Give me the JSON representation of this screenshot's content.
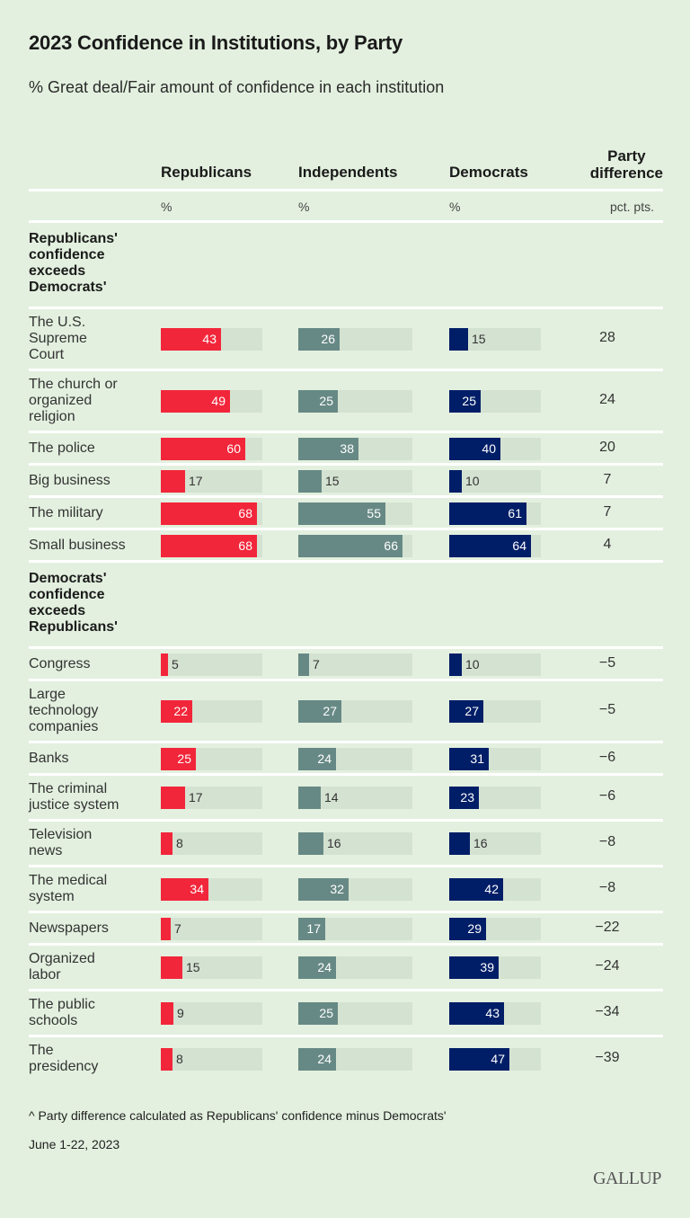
{
  "title": "2023 Confidence in Institutions, by Party",
  "subtitle": "% Great deal/Fair amount of confidence in each institution",
  "headers": {
    "rep": "Republicans",
    "ind": "Independents",
    "dem": "Democrats",
    "diff_line1": "Party",
    "diff_line2": "difference"
  },
  "units": {
    "rep": "%",
    "ind": "%",
    "dem": "%",
    "diff": "pct. pts."
  },
  "colors": {
    "rep": "#f2263a",
    "ind": "#678985",
    "dem": "#001e67",
    "track": "#d4e2d1",
    "background": "#e3f0df"
  },
  "chart_data": {
    "type": "bar",
    "xlim": [
      0,
      72
    ],
    "series_names": [
      "Republicans",
      "Independents",
      "Democrats",
      "Party difference"
    ],
    "sections": [
      {
        "label": "Republicans' confidence exceeds Democrats'",
        "rows": [
          {
            "label": "The U.S. Supreme Court",
            "rep": 43,
            "ind": 26,
            "dem": 15,
            "diff": "28"
          },
          {
            "label": "The church or organized religion",
            "rep": 49,
            "ind": 25,
            "dem": 25,
            "diff": "24"
          },
          {
            "label": "The police",
            "rep": 60,
            "ind": 38,
            "dem": 40,
            "diff": "20"
          },
          {
            "label": "Big business",
            "rep": 17,
            "ind": 15,
            "dem": 10,
            "diff": "7"
          },
          {
            "label": "The military",
            "rep": 68,
            "ind": 55,
            "dem": 61,
            "diff": "7"
          },
          {
            "label": "Small business",
            "rep": 68,
            "ind": 66,
            "dem": 64,
            "diff": "4"
          }
        ]
      },
      {
        "label": "Democrats' confidence exceeds Republicans'",
        "rows": [
          {
            "label": "Congress",
            "rep": 5,
            "ind": 7,
            "dem": 10,
            "diff": "−5"
          },
          {
            "label": "Large technology companies",
            "rep": 22,
            "ind": 27,
            "dem": 27,
            "diff": "−5"
          },
          {
            "label": "Banks",
            "rep": 25,
            "ind": 24,
            "dem": 31,
            "diff": "−6"
          },
          {
            "label": "The criminal justice system",
            "rep": 17,
            "ind": 14,
            "dem": 23,
            "diff": "−6"
          },
          {
            "label": "Television news",
            "rep": 8,
            "ind": 16,
            "dem": 16,
            "diff": "−8"
          },
          {
            "label": "The medical system",
            "rep": 34,
            "ind": 32,
            "dem": 42,
            "diff": "−8"
          },
          {
            "label": "Newspapers",
            "rep": 7,
            "ind": 17,
            "dem": 29,
            "diff": "−22"
          },
          {
            "label": "Organized labor",
            "rep": 15,
            "ind": 24,
            "dem": 39,
            "diff": "−24"
          },
          {
            "label": "The public schools",
            "rep": 9,
            "ind": 25,
            "dem": 43,
            "diff": "−34"
          },
          {
            "label": "The presidency",
            "rep": 8,
            "ind": 24,
            "dem": 47,
            "diff": "−39"
          }
        ]
      }
    ]
  },
  "footnote": "^ Party difference calculated as Republicans' confidence minus Democrats'",
  "date": "June 1-22, 2023",
  "logo": "GALLUP"
}
